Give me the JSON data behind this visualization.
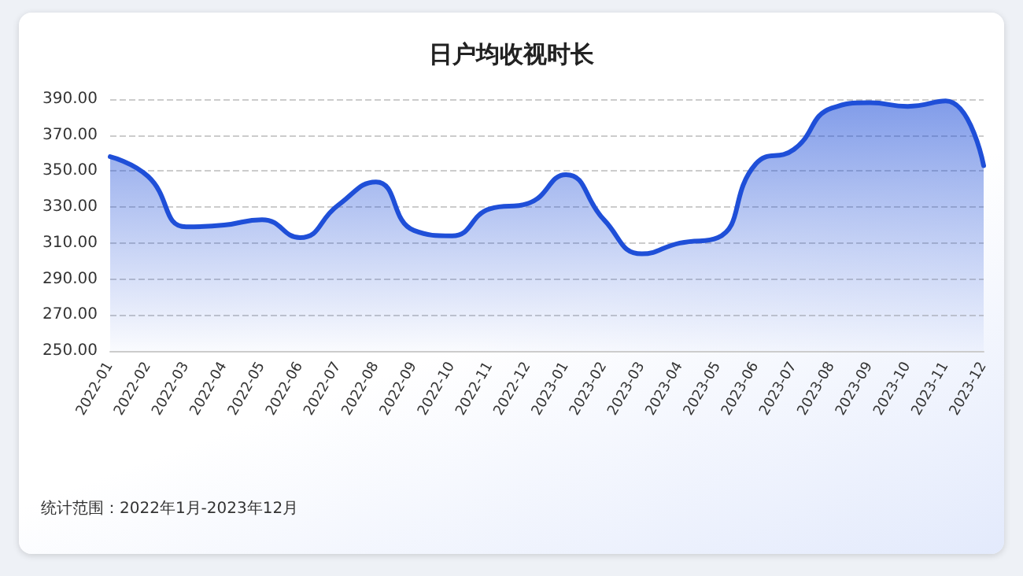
{
  "chart_data": {
    "type": "area",
    "title": "日户均收视时长",
    "categories": [
      "2022-01",
      "2022-02",
      "2022-03",
      "2022-04",
      "2022-05",
      "2022-06",
      "2022-07",
      "2022-08",
      "2022-09",
      "2022-10",
      "2022-11",
      "2022-12",
      "2023-01",
      "2023-02",
      "2023-03",
      "2023-04",
      "2023-05",
      "2023-06",
      "2023-07",
      "2023-08",
      "2023-09",
      "2023-10",
      "2023-11",
      "2023-12"
    ],
    "series": [
      {
        "color": "#1f4fd8",
        "values": [
          358,
          347,
          319,
          320,
          323,
          313,
          331,
          344,
          317,
          314,
          329,
          332,
          348,
          323,
          304,
          310,
          313,
          354,
          362,
          385,
          388,
          386,
          389,
          353
        ]
      }
    ],
    "ylim": [
      250,
      390
    ],
    "yticks": [
      {
        "value": 250,
        "label": "250.00"
      },
      {
        "value": 270,
        "label": "270.00"
      },
      {
        "value": 290,
        "label": "290.00"
      },
      {
        "value": 310,
        "label": "310.00"
      },
      {
        "value": 330,
        "label": "330.00"
      },
      {
        "value": 350,
        "label": "350.00"
      },
      {
        "value": 370,
        "label": "370.00"
      },
      {
        "value": 390,
        "label": "390.00"
      }
    ],
    "grid": "y",
    "marker": "none",
    "line_style": "solid",
    "annotations": [
      "统计范围：2022年1月-2023年12月"
    ]
  }
}
